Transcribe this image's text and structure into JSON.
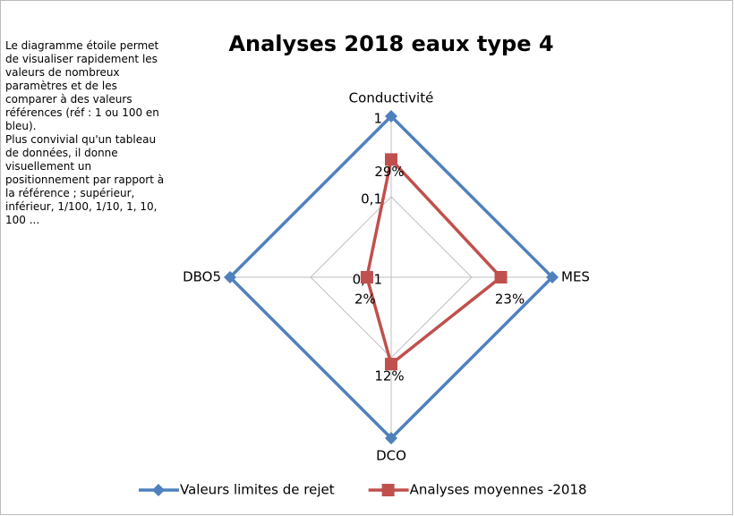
{
  "chart_data": {
    "type": "radar",
    "title": "Analyses 2018 eaux type 4",
    "annotations": [
      "Le diagramme étoile permet de visualiser rapidement les valeurs de nombreux paramètres et de les comparer à des valeurs références (réf : 1 ou 100 en bleu).",
      "Plus convivial qu'un tableau de données, il donne visuellement un positionnement par rapport à la référence ; supérieur, inférieur, 1/100, 1/10, 1, 10, 100 ..."
    ],
    "categories": [
      "Conductivité",
      "MES",
      "DCO",
      "DBO5"
    ],
    "log_scale": true,
    "rlim": [
      0.01,
      1
    ],
    "rticks": [
      {
        "value": 0.01,
        "label": "0,01"
      },
      {
        "value": 0.1,
        "label": "0,1"
      },
      1
    ],
    "grid": true,
    "legend": "bottom",
    "series": [
      {
        "name": "Valeurs limites de rejet",
        "color": "#4f81bd",
        "marker": "diamond",
        "values": [
          1,
          1,
          1,
          1
        ]
      },
      {
        "name": "Analyses moyennes -2018",
        "color": "#c0504d",
        "marker": "square",
        "values": [
          0.29,
          0.23,
          0.12,
          0.02
        ],
        "value_labels": [
          "29%",
          "23%",
          "12%",
          "2%"
        ]
      }
    ]
  }
}
